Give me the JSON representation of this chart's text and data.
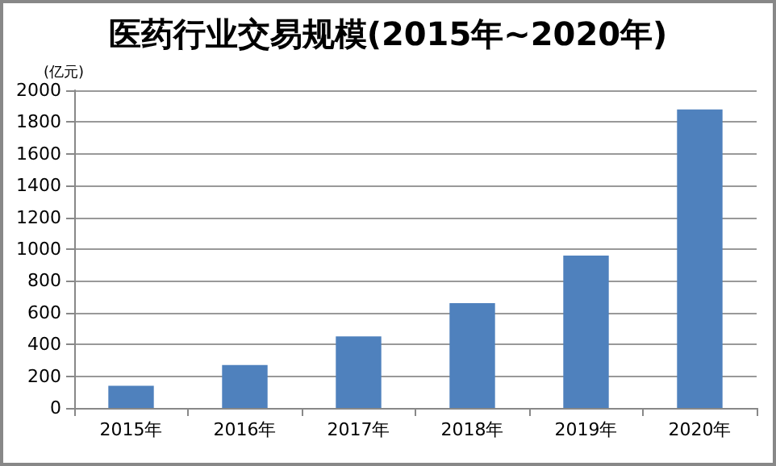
{
  "chart_data": {
    "type": "bar",
    "title": "医药行业交易规模(2015年~2020年)",
    "ylabel": "(亿元)",
    "categories": [
      "2015年",
      "2016年",
      "2017年",
      "2018年",
      "2019年",
      "2020年"
    ],
    "values": [
      140,
      270,
      450,
      660,
      960,
      1880
    ],
    "color": "#4f81bd",
    "ylim": [
      0,
      2000
    ],
    "yticks": [
      0,
      200,
      400,
      600,
      800,
      1000,
      1200,
      1400,
      1600,
      1800,
      2000
    ],
    "grid": "y"
  }
}
